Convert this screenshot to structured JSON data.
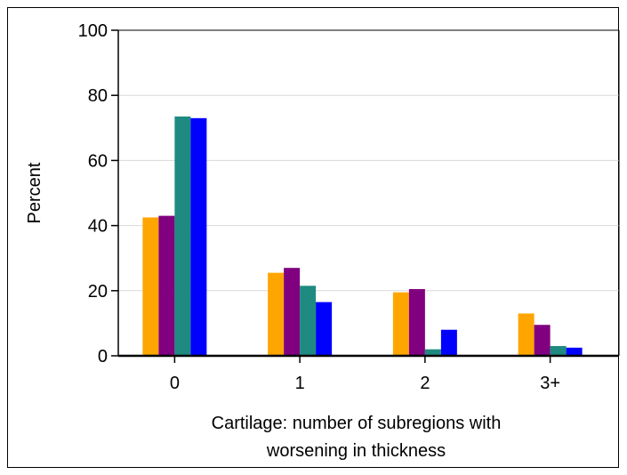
{
  "chart_data": {
    "type": "bar",
    "title": "",
    "xlabel": [
      "Cartilage: number of subregions with",
      "worsening in thickness"
    ],
    "ylabel": "Percent",
    "categories": [
      "0",
      "1",
      "2",
      "3+"
    ],
    "ylim": [
      0,
      100
    ],
    "yticks": [
      "0",
      "20",
      "40",
      "60",
      "80",
      "100"
    ],
    "grid": true,
    "legend": "none",
    "series": [
      {
        "color": "#FFA500",
        "values": [
          42.5,
          25.5,
          19.5,
          13
        ]
      },
      {
        "color": "#800080",
        "values": [
          43,
          27,
          20.5,
          9.5
        ]
      },
      {
        "color": "#1F8A80",
        "values": [
          73.5,
          21.5,
          2,
          3
        ]
      },
      {
        "color": "#0000FF",
        "values": [
          73,
          16.5,
          8,
          2.5
        ]
      }
    ]
  }
}
